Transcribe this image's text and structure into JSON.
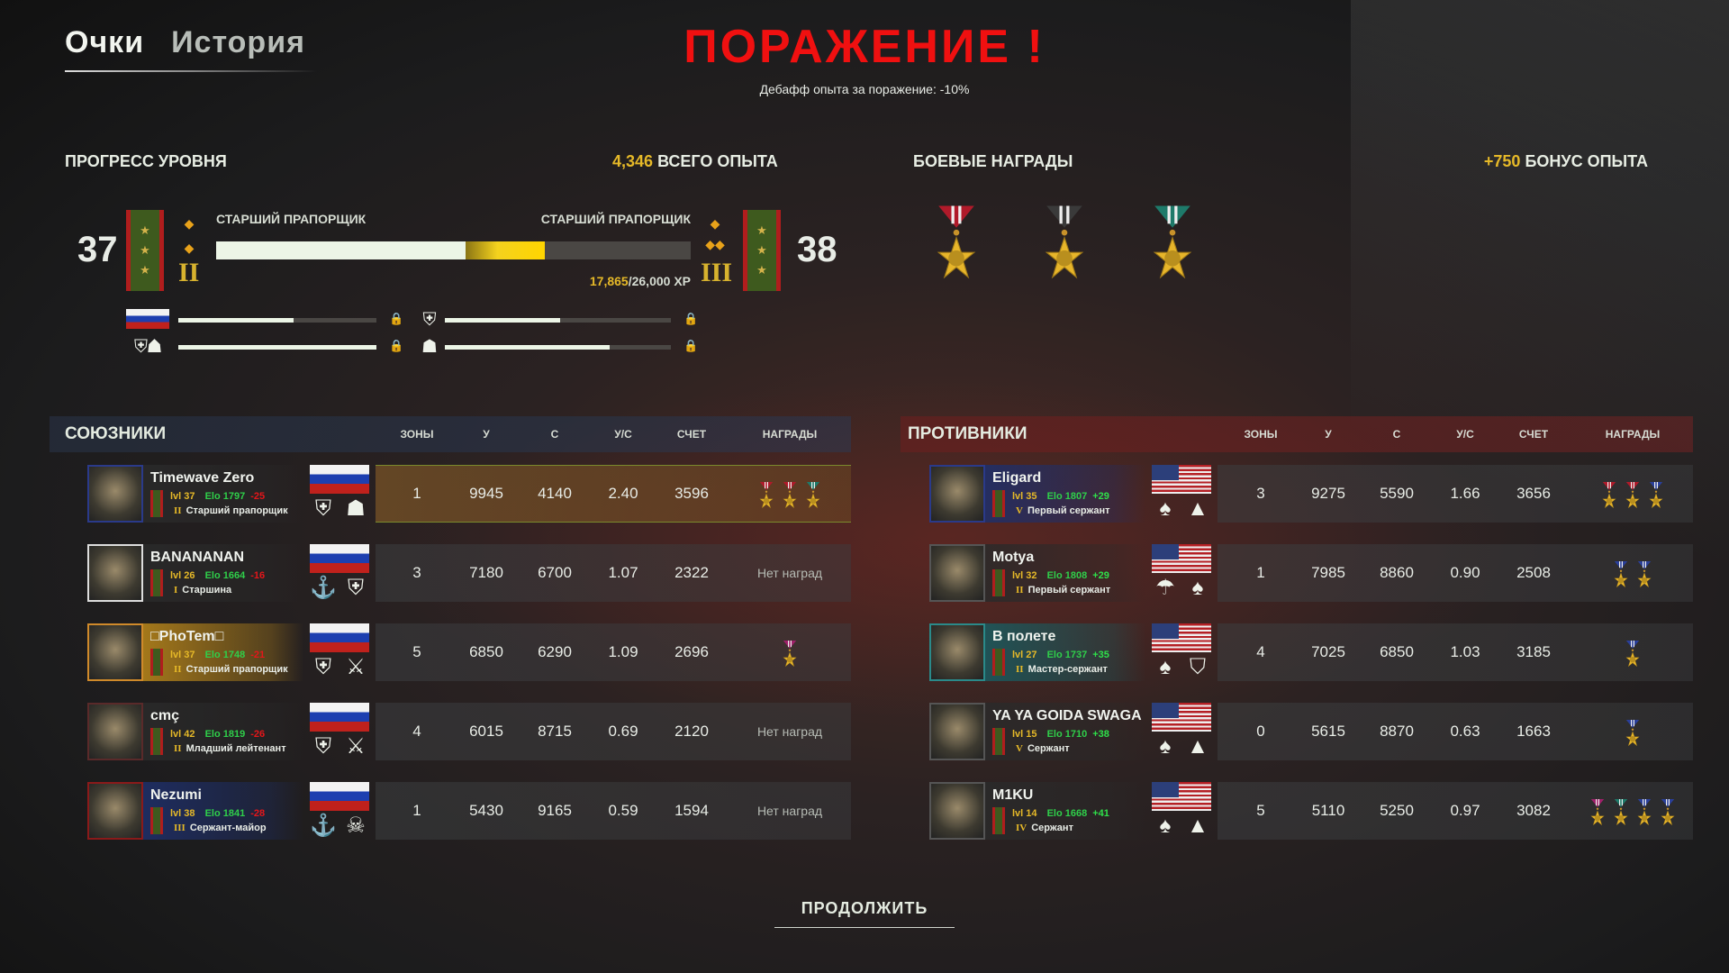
{
  "tabs": [
    {
      "label": "Очки",
      "active": true
    },
    {
      "label": "История",
      "active": false
    }
  ],
  "result": {
    "title": "ПОРАЖЕНИЕ !",
    "subtitle": "Дебафф опыта за поражение: -10%",
    "color": "#f01010"
  },
  "progress": {
    "heading": "ПРОГРЕСС УРОВНЯ",
    "total_xp_value": "4,346",
    "total_xp_label": "ВСЕГО ОПЫТА",
    "current_level": "37",
    "next_level": "38",
    "current_rank": "СТАРШИЙ ПРАПОРЩИК",
    "next_rank": "СТАРШИЙ ПРАПОРЩИК",
    "current_roman": "II",
    "next_roman": "III",
    "xp_current": "17,865",
    "xp_total": "/26,000 XP",
    "bar_previous_fraction": 0.525,
    "bar_gained_fraction": 0.167,
    "sub_progress": [
      {
        "icon": "russia-flag-icon",
        "fraction": 0.58
      },
      {
        "icon": "tank-unit-icon",
        "fraction": 0.51
      },
      {
        "icon": "tank-and-helmet-unit-icon",
        "fraction": 1.0
      },
      {
        "icon": "helmet-unit-icon",
        "fraction": 0.73
      }
    ]
  },
  "combat_awards": {
    "heading": "БОЕВЫЕ НАГРАДЫ",
    "bonus_value": "+750",
    "bonus_label": "БОНУС ОПЫТА",
    "medals": [
      {
        "icon": "scales-star-medal-icon",
        "ribbon": "#b01a2a"
      },
      {
        "icon": "skull-star-medal-icon",
        "ribbon": "#3a3a3a"
      },
      {
        "icon": "shield-star-medal-icon",
        "ribbon": "#1e7a6a"
      }
    ]
  },
  "columns": {
    "zones": "ЗОНЫ",
    "kills": "У",
    "deaths": "С",
    "kd": "У/С",
    "score": "СЧЕТ",
    "awards": "НАГРАДЫ"
  },
  "no_awards_text": "Нет наград",
  "allies": {
    "title": "СОЮЗНИКИ",
    "players": [
      {
        "name": "Timewave Zero",
        "lvl": "lvl 37",
        "elo": "Elo 1797",
        "delta": "-25",
        "rank": "Старший прапорщик",
        "roman": "II",
        "flag": "ru",
        "units": [
          "tank-unit-icon",
          "helmet-unit-icon"
        ],
        "zones": "1",
        "kills": "9945",
        "deaths": "4140",
        "kd": "2.40",
        "score": "3596",
        "awards": [
          "#b01a2a",
          "#b01a2a",
          "#1e7a6a"
        ],
        "highlight": true,
        "namebox": "#2a2a2a",
        "avatar_border": "#2a3a8a"
      },
      {
        "name": "BANANANAN",
        "lvl": "lvl 26",
        "elo": "Elo 1664",
        "delta": "-16",
        "rank": "Старшина",
        "roman": "I",
        "flag": "ru",
        "units": [
          "anchor-unit-icon",
          "tank-unit-icon"
        ],
        "zones": "3",
        "kills": "7180",
        "deaths": "6700",
        "kd": "1.07",
        "score": "2322",
        "awards": [],
        "highlight": false,
        "namebox": "#2a2a2a",
        "avatar_border": "#ddd"
      },
      {
        "name": "□PhoTem□",
        "lvl": "lvl 37",
        "elo": "Elo 1748",
        "delta": "-21",
        "rank": "Старший прапорщик",
        "roman": "II",
        "flag": "ru",
        "units": [
          "tank-unit-icon",
          "crossed-rifles-unit-icon"
        ],
        "zones": "5",
        "kills": "6850",
        "deaths": "6290",
        "kd": "1.09",
        "score": "2696",
        "awards": [
          "#a0206a"
        ],
        "highlight": false,
        "namebox": "#b8861a",
        "avatar_border": "#d08a2a"
      },
      {
        "name": "cmç",
        "lvl": "lvl 42",
        "elo": "Elo 1819",
        "delta": "-26",
        "rank": "Младший лейтенант",
        "roman": "II",
        "flag": "ru",
        "units": [
          "tank-unit-icon",
          "crossed-rifles-unit-icon"
        ],
        "zones": "4",
        "kills": "6015",
        "deaths": "8715",
        "kd": "0.69",
        "score": "2120",
        "awards": [],
        "highlight": false,
        "namebox": "#2a2a2a",
        "avatar_border": "#5a2a2a"
      },
      {
        "name": "Nezumi",
        "lvl": "lvl 38",
        "elo": "Elo 1841",
        "delta": "-28",
        "rank": "Сержант-майор",
        "roman": "III",
        "flag": "ru",
        "units": [
          "anchor-unit-icon",
          "parachute-skull-unit-icon"
        ],
        "zones": "1",
        "kills": "5430",
        "deaths": "9165",
        "kd": "0.59",
        "score": "1594",
        "awards": [],
        "highlight": false,
        "namebox": "#1e2f6a",
        "avatar_border": "#8a1a1a"
      }
    ]
  },
  "enemies": {
    "title": "ПРОТИВНИКИ",
    "players": [
      {
        "name": "Eligard",
        "lvl": "lvl 35",
        "elo": "Elo 1807",
        "delta": "+29",
        "rank": "Первый сержант",
        "roman": "V",
        "flag": "us",
        "units": [
          "spearhead-unit-icon",
          "triangle-unit-icon"
        ],
        "zones": "3",
        "kills": "9275",
        "deaths": "5590",
        "kd": "1.66",
        "score": "3656",
        "awards": [
          "#b01a2a",
          "#b01a2a",
          "#2a3f9a"
        ],
        "highlight": false,
        "namebox": "#1e2f6a",
        "avatar_border": "#2a3a8a"
      },
      {
        "name": "Motya",
        "lvl": "lvl 32",
        "elo": "Elo 1808",
        "delta": "+29",
        "rank": "Первый сержант",
        "roman": "II",
        "flag": "us",
        "units": [
          "parachute-unit-icon",
          "spearhead-unit-icon"
        ],
        "zones": "1",
        "kills": "7985",
        "deaths": "8860",
        "kd": "0.90",
        "score": "2508",
        "awards": [
          "#2a3f9a",
          "#2a3f9a"
        ],
        "highlight": false,
        "namebox": "#2a2a2a",
        "avatar_border": "#555"
      },
      {
        "name": "В полете",
        "lvl": "lvl 27",
        "elo": "Elo 1737",
        "delta": "+35",
        "rank": "Мастер-сержант",
        "roman": "II",
        "flag": "us",
        "units": [
          "spearhead-unit-icon",
          "cavalry-unit-icon"
        ],
        "zones": "4",
        "kills": "7025",
        "deaths": "6850",
        "kd": "1.03",
        "score": "3185",
        "awards": [
          "#2a3f9a"
        ],
        "highlight": false,
        "namebox": "#1a5a5e",
        "avatar_border": "#2a8a8a"
      },
      {
        "name": "YA YA GOIDA SWAGA",
        "lvl": "lvl 15",
        "elo": "Elo 1710",
        "delta": "+38",
        "rank": "Сержант",
        "roman": "V",
        "flag": "us",
        "units": [
          "spearhead-unit-icon",
          "triangle-unit-icon"
        ],
        "zones": "0",
        "kills": "5615",
        "deaths": "8870",
        "kd": "0.63",
        "score": "1663",
        "awards": [
          "#2a3f9a"
        ],
        "highlight": false,
        "namebox": "#2a2a2a",
        "avatar_border": "#555"
      },
      {
        "name": "M1KU",
        "lvl": "lvl 14",
        "elo": "Elo 1668",
        "delta": "+41",
        "rank": "Сержант",
        "roman": "IV",
        "flag": "us",
        "units": [
          "spearhead-unit-icon",
          "triangle-unit-icon"
        ],
        "zones": "5",
        "kills": "5110",
        "deaths": "5250",
        "kd": "0.97",
        "score": "3082",
        "awards": [
          "#a0206a",
          "#1e7a6a",
          "#2a3f9a",
          "#2a3f9a"
        ],
        "highlight": false,
        "namebox": "#2a2a2a",
        "avatar_border": "#555"
      }
    ]
  },
  "continue_label": "ПРОДОЛЖИТЬ"
}
